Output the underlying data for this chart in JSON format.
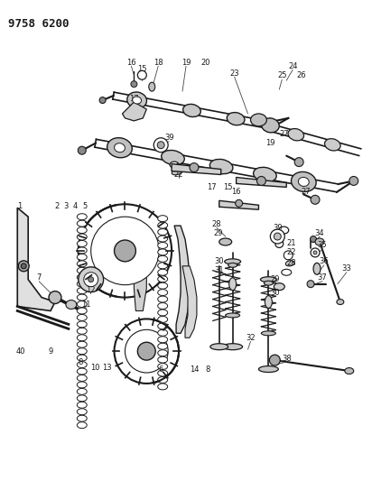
{
  "title": "9758 6200",
  "bg_color": "#ffffff",
  "fig_width": 4.12,
  "fig_height": 5.33,
  "dpi": 100,
  "lc": "#1a1a1a",
  "title_fontsize": 9,
  "title_fontweight": "bold"
}
